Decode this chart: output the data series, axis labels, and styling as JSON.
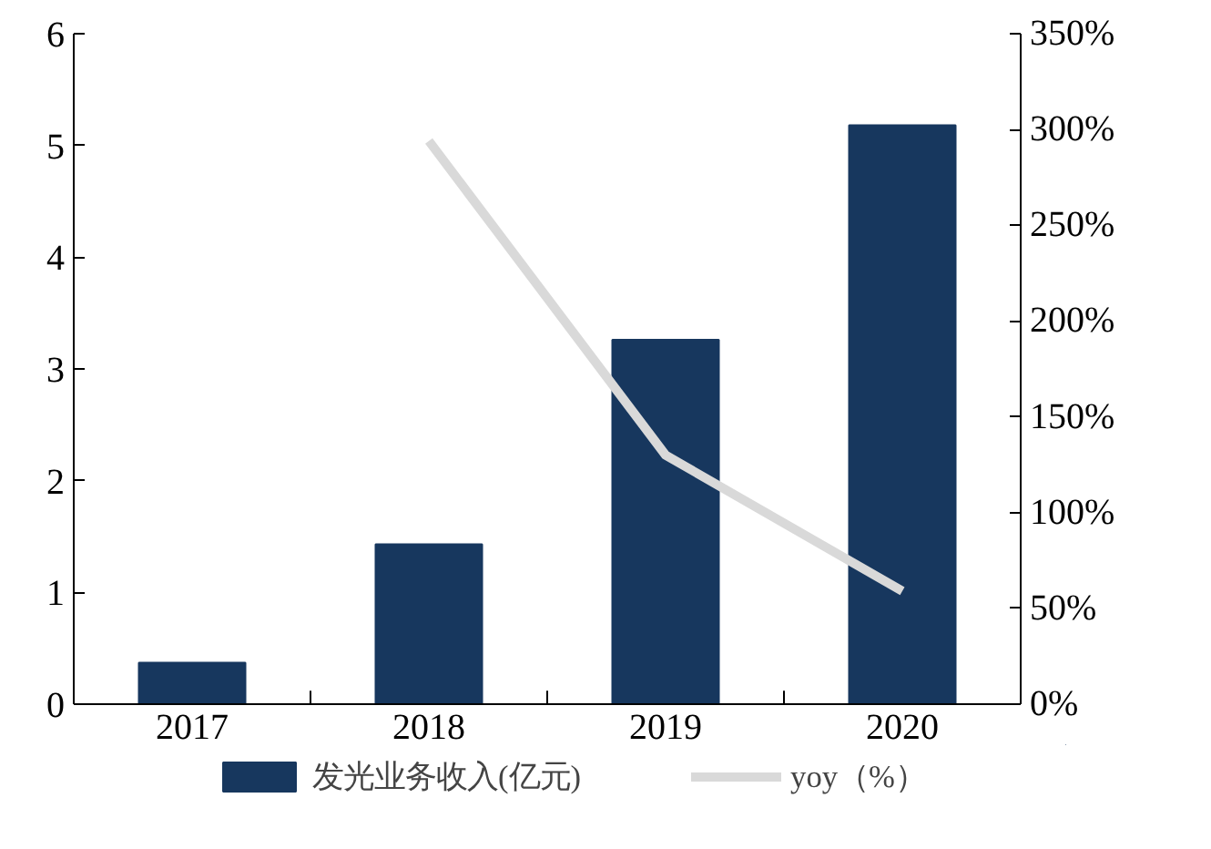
{
  "chart_data": {
    "type": "bar",
    "categories": [
      "2017",
      "2018",
      "2019",
      "2020"
    ],
    "series": [
      {
        "name": "发光业务收入(亿元)",
        "color": "#17375e",
        "values": [
          0.37,
          1.43,
          3.26,
          5.18
        ]
      },
      {
        "name": "yoy（%）",
        "type": "line",
        "axis": "y2",
        "color": "#d9d9d9",
        "values": [
          null,
          294,
          130,
          59
        ]
      }
    ],
    "ylim": [
      0,
      6
    ],
    "yticks": [
      0,
      1,
      2,
      3,
      4,
      5,
      6
    ],
    "y2lim": [
      0,
      350
    ],
    "y2ticks": [
      {
        "value": 0,
        "label": "0%"
      },
      {
        "value": 50,
        "label": "50%"
      },
      {
        "value": 100,
        "label": "100%"
      },
      {
        "value": 150,
        "label": "150%"
      },
      {
        "value": 200,
        "label": "200%"
      },
      {
        "value": 250,
        "label": "250%"
      },
      {
        "value": 300,
        "label": "300%"
      },
      {
        "value": 350,
        "label": "350%"
      }
    ],
    "grid": false,
    "legend": "bottom",
    "marker": "none"
  }
}
